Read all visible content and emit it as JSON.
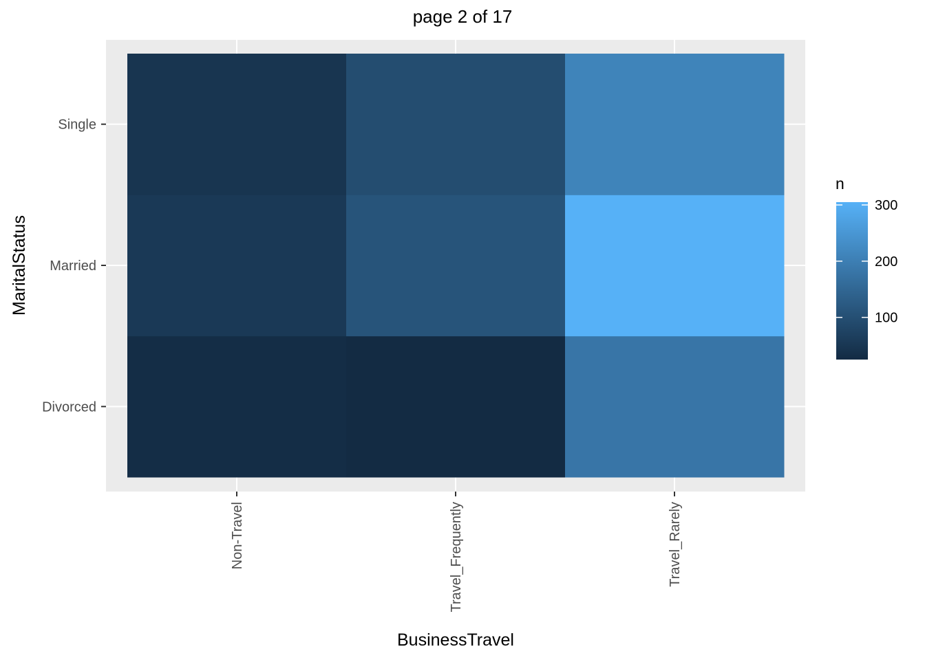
{
  "chart_data": {
    "type": "heatmap",
    "title": "page 2 of 17",
    "xlabel": "BusinessTravel",
    "ylabel": "MaritalStatus",
    "x_categories": [
      "Non-Travel",
      "Travel_Frequently",
      "Travel_Rarely"
    ],
    "y_categories": [
      "Divorced",
      "Married",
      "Single"
    ],
    "cells": [
      {
        "x": "Non-Travel",
        "y": "Divorced",
        "n": 30
      },
      {
        "x": "Non-Travel",
        "y": "Married",
        "n": 55
      },
      {
        "x": "Non-Travel",
        "y": "Single",
        "n": 45
      },
      {
        "x": "Travel_Frequently",
        "y": "Divorced",
        "n": 25
      },
      {
        "x": "Travel_Frequently",
        "y": "Married",
        "n": 110
      },
      {
        "x": "Travel_Frequently",
        "y": "Single",
        "n": 95
      },
      {
        "x": "Travel_Rarely",
        "y": "Divorced",
        "n": 180
      },
      {
        "x": "Travel_Rarely",
        "y": "Married",
        "n": 305
      },
      {
        "x": "Travel_Rarely",
        "y": "Single",
        "n": 210
      }
    ],
    "legend": {
      "title": "n",
      "ticks": [
        100,
        200,
        300
      ],
      "range": [
        25,
        305
      ],
      "low_color": "#132B43",
      "high_color": "#56B1F7",
      "placement": "right"
    },
    "grid": true,
    "panel_background": "#EBEBEB"
  }
}
